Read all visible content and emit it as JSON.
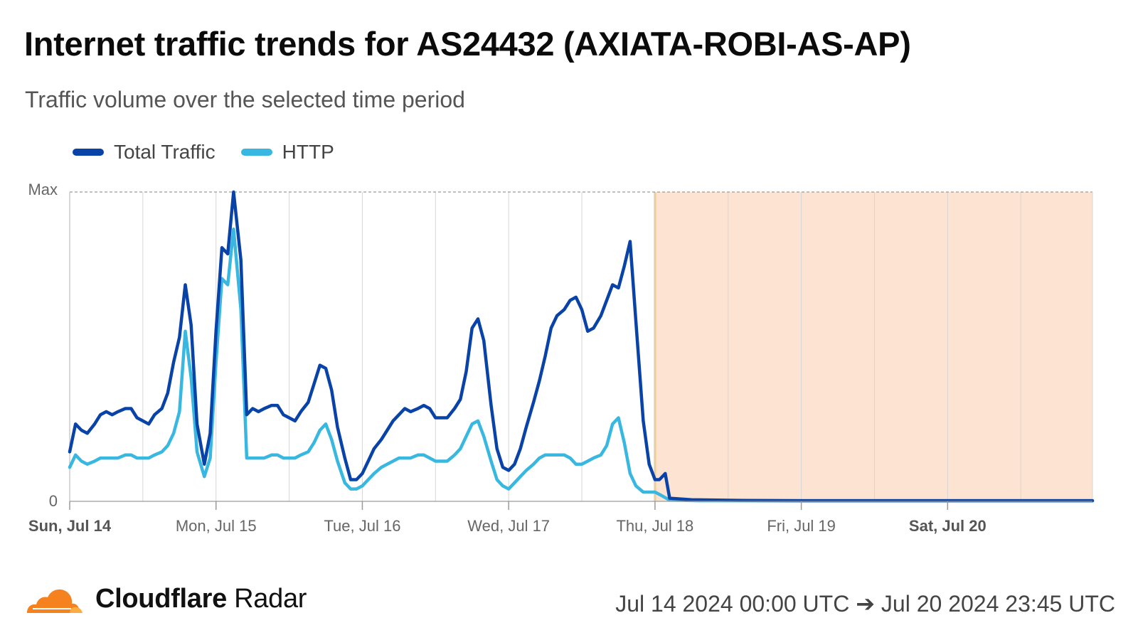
{
  "header": {
    "title": "Internet traffic trends for AS24432 (AXIATA-ROBI-AS-AP)",
    "subtitle": "Traffic volume over the selected time period"
  },
  "legend": [
    {
      "label": "Total Traffic",
      "color": "#0a43a8"
    },
    {
      "label": "HTTP",
      "color": "#38b7e0"
    }
  ],
  "chart_data": {
    "type": "line",
    "y_ticks": [
      "Max",
      "0"
    ],
    "ylim": [
      0,
      1
    ],
    "x_ticks": [
      {
        "label": "Sun, Jul 14",
        "day": 0,
        "bold": true
      },
      {
        "label": "Mon, Jul 15",
        "day": 1,
        "bold": false
      },
      {
        "label": "Tue, Jul 16",
        "day": 2,
        "bold": false
      },
      {
        "label": "Wed, Jul 17",
        "day": 3,
        "bold": false
      },
      {
        "label": "Thu, Jul 18",
        "day": 4,
        "bold": false
      },
      {
        "label": "Fri, Jul 19",
        "day": 5,
        "bold": false
      },
      {
        "label": "Sat, Jul 20",
        "day": 6,
        "bold": true
      }
    ],
    "xlim": [
      0,
      6.99
    ],
    "grid": "vertical every 12 hours",
    "outage_region": {
      "from": 4.0,
      "to": 6.99,
      "color": "#fde3d1",
      "edge_color": "#f7c86a"
    },
    "series": [
      {
        "name": "Total Traffic",
        "color": "#0a43a8",
        "points": [
          [
            0.0,
            0.16
          ],
          [
            0.04,
            0.25
          ],
          [
            0.08,
            0.23
          ],
          [
            0.12,
            0.22
          ],
          [
            0.17,
            0.25
          ],
          [
            0.21,
            0.28
          ],
          [
            0.25,
            0.29
          ],
          [
            0.29,
            0.28
          ],
          [
            0.33,
            0.29
          ],
          [
            0.38,
            0.3
          ],
          [
            0.42,
            0.3
          ],
          [
            0.46,
            0.27
          ],
          [
            0.5,
            0.26
          ],
          [
            0.54,
            0.25
          ],
          [
            0.58,
            0.28
          ],
          [
            0.63,
            0.3
          ],
          [
            0.67,
            0.35
          ],
          [
            0.71,
            0.45
          ],
          [
            0.75,
            0.53
          ],
          [
            0.79,
            0.7
          ],
          [
            0.83,
            0.57
          ],
          [
            0.87,
            0.25
          ],
          [
            0.92,
            0.12
          ],
          [
            0.96,
            0.22
          ],
          [
            1.0,
            0.55
          ],
          [
            1.04,
            0.82
          ],
          [
            1.08,
            0.8
          ],
          [
            1.12,
            1.0
          ],
          [
            1.17,
            0.78
          ],
          [
            1.21,
            0.28
          ],
          [
            1.25,
            0.3
          ],
          [
            1.29,
            0.29
          ],
          [
            1.33,
            0.3
          ],
          [
            1.38,
            0.31
          ],
          [
            1.42,
            0.31
          ],
          [
            1.46,
            0.28
          ],
          [
            1.5,
            0.27
          ],
          [
            1.54,
            0.26
          ],
          [
            1.58,
            0.29
          ],
          [
            1.63,
            0.32
          ],
          [
            1.67,
            0.38
          ],
          [
            1.71,
            0.44
          ],
          [
            1.75,
            0.43
          ],
          [
            1.79,
            0.36
          ],
          [
            1.83,
            0.24
          ],
          [
            1.88,
            0.14
          ],
          [
            1.92,
            0.07
          ],
          [
            1.96,
            0.07
          ],
          [
            2.0,
            0.09
          ],
          [
            2.04,
            0.13
          ],
          [
            2.08,
            0.17
          ],
          [
            2.13,
            0.2
          ],
          [
            2.17,
            0.23
          ],
          [
            2.21,
            0.26
          ],
          [
            2.25,
            0.28
          ],
          [
            2.29,
            0.3
          ],
          [
            2.33,
            0.29
          ],
          [
            2.38,
            0.3
          ],
          [
            2.42,
            0.31
          ],
          [
            2.46,
            0.3
          ],
          [
            2.5,
            0.27
          ],
          [
            2.54,
            0.27
          ],
          [
            2.58,
            0.27
          ],
          [
            2.63,
            0.3
          ],
          [
            2.67,
            0.33
          ],
          [
            2.71,
            0.42
          ],
          [
            2.75,
            0.56
          ],
          [
            2.79,
            0.59
          ],
          [
            2.83,
            0.52
          ],
          [
            2.88,
            0.31
          ],
          [
            2.92,
            0.17
          ],
          [
            2.96,
            0.11
          ],
          [
            3.0,
            0.1
          ],
          [
            3.04,
            0.12
          ],
          [
            3.08,
            0.17
          ],
          [
            3.12,
            0.24
          ],
          [
            3.17,
            0.32
          ],
          [
            3.21,
            0.39
          ],
          [
            3.25,
            0.47
          ],
          [
            3.29,
            0.56
          ],
          [
            3.33,
            0.6
          ],
          [
            3.38,
            0.62
          ],
          [
            3.42,
            0.65
          ],
          [
            3.46,
            0.66
          ],
          [
            3.5,
            0.62
          ],
          [
            3.54,
            0.55
          ],
          [
            3.58,
            0.56
          ],
          [
            3.63,
            0.6
          ],
          [
            3.67,
            0.65
          ],
          [
            3.71,
            0.7
          ],
          [
            3.75,
            0.69
          ],
          [
            3.79,
            0.76
          ],
          [
            3.83,
            0.84
          ],
          [
            3.87,
            0.58
          ],
          [
            3.92,
            0.26
          ],
          [
            3.96,
            0.12
          ],
          [
            4.0,
            0.07
          ],
          [
            4.03,
            0.07
          ],
          [
            4.07,
            0.09
          ],
          [
            4.1,
            0.01
          ],
          [
            4.25,
            0.005
          ],
          [
            4.6,
            0.003
          ],
          [
            5.0,
            0.002
          ],
          [
            5.5,
            0.002
          ],
          [
            6.0,
            0.002
          ],
          [
            6.5,
            0.002
          ],
          [
            6.99,
            0.002
          ]
        ]
      },
      {
        "name": "HTTP",
        "color": "#38b7e0",
        "points": [
          [
            0.0,
            0.11
          ],
          [
            0.04,
            0.15
          ],
          [
            0.08,
            0.13
          ],
          [
            0.12,
            0.12
          ],
          [
            0.17,
            0.13
          ],
          [
            0.21,
            0.14
          ],
          [
            0.25,
            0.14
          ],
          [
            0.29,
            0.14
          ],
          [
            0.33,
            0.14
          ],
          [
            0.38,
            0.15
          ],
          [
            0.42,
            0.15
          ],
          [
            0.46,
            0.14
          ],
          [
            0.5,
            0.14
          ],
          [
            0.54,
            0.14
          ],
          [
            0.58,
            0.15
          ],
          [
            0.63,
            0.16
          ],
          [
            0.67,
            0.18
          ],
          [
            0.71,
            0.22
          ],
          [
            0.75,
            0.29
          ],
          [
            0.79,
            0.55
          ],
          [
            0.83,
            0.4
          ],
          [
            0.87,
            0.16
          ],
          [
            0.92,
            0.08
          ],
          [
            0.96,
            0.14
          ],
          [
            1.0,
            0.45
          ],
          [
            1.04,
            0.72
          ],
          [
            1.08,
            0.7
          ],
          [
            1.12,
            0.88
          ],
          [
            1.17,
            0.62
          ],
          [
            1.21,
            0.14
          ],
          [
            1.25,
            0.14
          ],
          [
            1.29,
            0.14
          ],
          [
            1.33,
            0.14
          ],
          [
            1.38,
            0.15
          ],
          [
            1.42,
            0.15
          ],
          [
            1.46,
            0.14
          ],
          [
            1.5,
            0.14
          ],
          [
            1.54,
            0.14
          ],
          [
            1.58,
            0.15
          ],
          [
            1.63,
            0.16
          ],
          [
            1.67,
            0.19
          ],
          [
            1.71,
            0.23
          ],
          [
            1.75,
            0.25
          ],
          [
            1.79,
            0.2
          ],
          [
            1.83,
            0.13
          ],
          [
            1.88,
            0.06
          ],
          [
            1.92,
            0.04
          ],
          [
            1.96,
            0.04
          ],
          [
            2.0,
            0.05
          ],
          [
            2.04,
            0.07
          ],
          [
            2.08,
            0.09
          ],
          [
            2.13,
            0.11
          ],
          [
            2.17,
            0.12
          ],
          [
            2.21,
            0.13
          ],
          [
            2.25,
            0.14
          ],
          [
            2.29,
            0.14
          ],
          [
            2.33,
            0.14
          ],
          [
            2.38,
            0.15
          ],
          [
            2.42,
            0.15
          ],
          [
            2.46,
            0.14
          ],
          [
            2.5,
            0.13
          ],
          [
            2.54,
            0.13
          ],
          [
            2.58,
            0.13
          ],
          [
            2.63,
            0.15
          ],
          [
            2.67,
            0.17
          ],
          [
            2.71,
            0.21
          ],
          [
            2.75,
            0.25
          ],
          [
            2.79,
            0.26
          ],
          [
            2.83,
            0.21
          ],
          [
            2.88,
            0.13
          ],
          [
            2.92,
            0.07
          ],
          [
            2.96,
            0.05
          ],
          [
            3.0,
            0.04
          ],
          [
            3.04,
            0.06
          ],
          [
            3.08,
            0.08
          ],
          [
            3.12,
            0.1
          ],
          [
            3.17,
            0.12
          ],
          [
            3.21,
            0.14
          ],
          [
            3.25,
            0.15
          ],
          [
            3.29,
            0.15
          ],
          [
            3.33,
            0.15
          ],
          [
            3.38,
            0.15
          ],
          [
            3.42,
            0.14
          ],
          [
            3.46,
            0.12
          ],
          [
            3.5,
            0.12
          ],
          [
            3.54,
            0.13
          ],
          [
            3.58,
            0.14
          ],
          [
            3.63,
            0.15
          ],
          [
            3.67,
            0.18
          ],
          [
            3.71,
            0.25
          ],
          [
            3.75,
            0.27
          ],
          [
            3.79,
            0.19
          ],
          [
            3.83,
            0.09
          ],
          [
            3.87,
            0.05
          ],
          [
            3.92,
            0.03
          ],
          [
            3.96,
            0.03
          ],
          [
            4.0,
            0.03
          ],
          [
            4.04,
            0.02
          ],
          [
            4.1,
            0.004
          ],
          [
            4.3,
            0.002
          ],
          [
            5.0,
            0.002
          ],
          [
            6.0,
            0.002
          ],
          [
            6.99,
            0.002
          ]
        ]
      }
    ]
  },
  "footer": {
    "brand_bold": "Cloudflare",
    "brand_light": " Radar",
    "date_range": "Jul 14 2024 00:00 UTC ➔ Jul 20 2024 23:45 UTC",
    "logo_icon": "cloudflare-cloud-icon",
    "logo_colors": [
      "#f6821f",
      "#fbad41"
    ]
  }
}
